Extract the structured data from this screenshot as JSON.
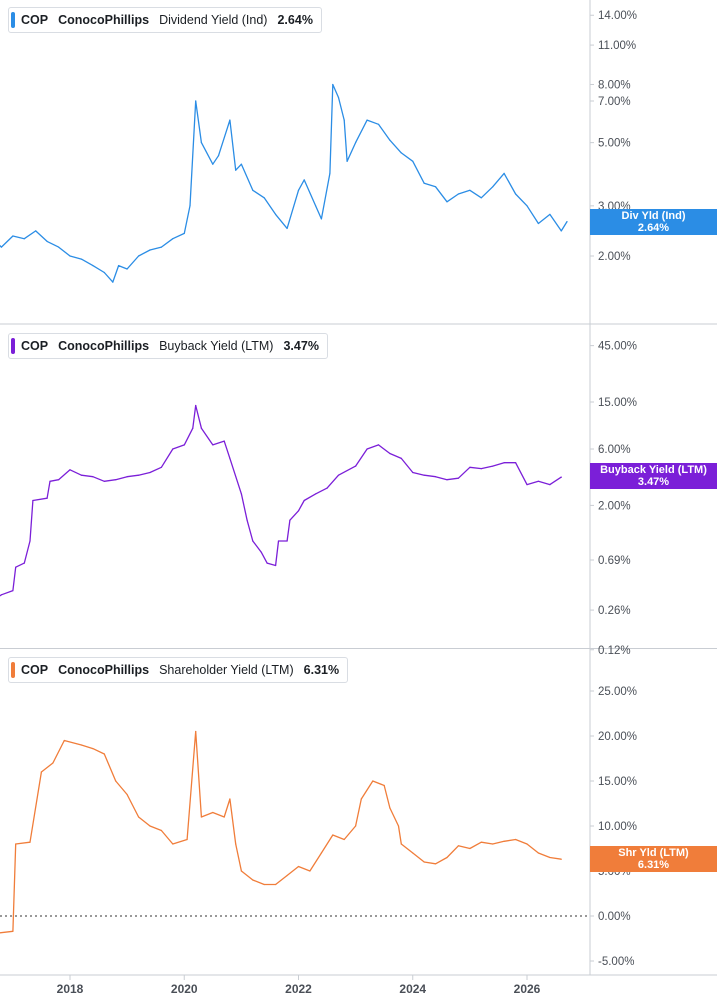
{
  "colors": {
    "dividend": "#2b8de5",
    "buyback": "#7b1fd8",
    "shareholder": "#f07d3a",
    "axis_text": "#4a4f57",
    "divider": "#c9cdd3"
  },
  "x_axis": {
    "ticks": [
      "2018",
      "2020",
      "2022",
      "2024",
      "2026"
    ]
  },
  "panels": [
    {
      "legend": {
        "ticker": "COP",
        "company": "ConocoPhillips",
        "metric": "Dividend Yield (Ind)",
        "value": "2.64%"
      },
      "tag": {
        "line1": "Div Yld (Ind)",
        "line2": "2.64%"
      },
      "ticks": [
        "14.00%",
        "11.00%",
        "8.00%",
        "7.00%",
        "5.00%",
        "3.00%",
        "2.00%"
      ]
    },
    {
      "legend": {
        "ticker": "COP",
        "company": "ConocoPhillips",
        "metric": "Buyback Yield (LTM)",
        "value": "3.47%"
      },
      "tag": {
        "line1": "Buyback Yield (LTM)",
        "line2": "3.47%"
      },
      "ticks": [
        "45.00%",
        "15.00%",
        "6.00%",
        "2.00%",
        "0.69%",
        "0.26%",
        "0.12%"
      ]
    },
    {
      "legend": {
        "ticker": "COP",
        "company": "ConocoPhillips",
        "metric": "Shareholder Yield (LTM)",
        "value": "6.31%"
      },
      "tag": {
        "line1": "Shr Yld (LTM)",
        "line2": "6.31%"
      },
      "ticks": [
        "25.00%",
        "20.00%",
        "15.00%",
        "10.00%",
        "5.00%",
        "0.00%",
        "-5.00%"
      ]
    }
  ],
  "chart_data": [
    {
      "type": "line",
      "title": "COP ConocoPhillips Dividend Yield (Ind) 2.64%",
      "y_scale": "log",
      "ylim": [
        1.5,
        16
      ],
      "series": [
        {
          "name": "Dividend Yield (Ind)",
          "points": [
            [
              2016.4,
              2.5
            ],
            [
              2016.6,
              2.35
            ],
            [
              2016.8,
              2.15
            ],
            [
              2017.0,
              2.35
            ],
            [
              2017.2,
              2.3
            ],
            [
              2017.4,
              2.45
            ],
            [
              2017.6,
              2.25
            ],
            [
              2017.8,
              2.15
            ],
            [
              2018.0,
              2.0
            ],
            [
              2018.2,
              1.95
            ],
            [
              2018.4,
              1.85
            ],
            [
              2018.6,
              1.75
            ],
            [
              2018.75,
              1.62
            ],
            [
              2018.85,
              1.85
            ],
            [
              2019.0,
              1.8
            ],
            [
              2019.2,
              2.0
            ],
            [
              2019.4,
              2.1
            ],
            [
              2019.6,
              2.15
            ],
            [
              2019.8,
              2.3
            ],
            [
              2020.0,
              2.4
            ],
            [
              2020.1,
              3.0
            ],
            [
              2020.2,
              7.0
            ],
            [
              2020.3,
              5.0
            ],
            [
              2020.5,
              4.2
            ],
            [
              2020.6,
              4.5
            ],
            [
              2020.8,
              6.0
            ],
            [
              2020.9,
              4.0
            ],
            [
              2021.0,
              4.2
            ],
            [
              2021.2,
              3.4
            ],
            [
              2021.4,
              3.2
            ],
            [
              2021.6,
              2.8
            ],
            [
              2021.8,
              2.5
            ],
            [
              2022.0,
              3.4
            ],
            [
              2022.1,
              3.7
            ],
            [
              2022.3,
              3.0
            ],
            [
              2022.4,
              2.7
            ],
            [
              2022.55,
              3.9
            ],
            [
              2022.6,
              8.0
            ],
            [
              2022.7,
              7.2
            ],
            [
              2022.8,
              6.0
            ],
            [
              2022.85,
              4.3
            ],
            [
              2023.0,
              5.0
            ],
            [
              2023.2,
              6.0
            ],
            [
              2023.4,
              5.8
            ],
            [
              2023.6,
              5.1
            ],
            [
              2023.8,
              4.6
            ],
            [
              2024.0,
              4.3
            ],
            [
              2024.2,
              3.6
            ],
            [
              2024.4,
              3.5
            ],
            [
              2024.6,
              3.1
            ],
            [
              2024.8,
              3.3
            ],
            [
              2025.0,
              3.4
            ],
            [
              2025.2,
              3.2
            ],
            [
              2025.4,
              3.5
            ],
            [
              2025.6,
              3.9
            ],
            [
              2025.8,
              3.3
            ],
            [
              2026.0,
              3.0
            ],
            [
              2026.2,
              2.6
            ],
            [
              2026.4,
              2.8
            ],
            [
              2026.6,
              2.45
            ],
            [
              2026.7,
              2.64
            ]
          ]
        }
      ]
    },
    {
      "type": "line",
      "title": "COP ConocoPhillips Buyback Yield (LTM) 3.47%",
      "y_scale": "log",
      "ylim": [
        0.12,
        60
      ],
      "series": [
        {
          "name": "Buyback Yield (LTM)",
          "points": [
            [
              2016.55,
              0.16
            ],
            [
              2016.6,
              0.3
            ],
            [
              2016.8,
              0.35
            ],
            [
              2017.0,
              0.38
            ],
            [
              2017.05,
              0.6
            ],
            [
              2017.2,
              0.65
            ],
            [
              2017.3,
              1.0
            ],
            [
              2017.35,
              2.2
            ],
            [
              2017.6,
              2.3
            ],
            [
              2017.65,
              3.2
            ],
            [
              2017.8,
              3.3
            ],
            [
              2018.0,
              4.0
            ],
            [
              2018.2,
              3.6
            ],
            [
              2018.4,
              3.5
            ],
            [
              2018.6,
              3.2
            ],
            [
              2018.8,
              3.3
            ],
            [
              2019.0,
              3.5
            ],
            [
              2019.2,
              3.6
            ],
            [
              2019.4,
              3.8
            ],
            [
              2019.6,
              4.2
            ],
            [
              2019.8,
              6.0
            ],
            [
              2020.0,
              6.5
            ],
            [
              2020.15,
              9.0
            ],
            [
              2020.2,
              14.0
            ],
            [
              2020.3,
              9.0
            ],
            [
              2020.5,
              6.5
            ],
            [
              2020.7,
              7.0
            ],
            [
              2020.8,
              5.0
            ],
            [
              2021.0,
              2.5
            ],
            [
              2021.1,
              1.5
            ],
            [
              2021.2,
              1.0
            ],
            [
              2021.35,
              0.8
            ],
            [
              2021.45,
              0.65
            ],
            [
              2021.6,
              0.62
            ],
            [
              2021.65,
              1.0
            ],
            [
              2021.8,
              1.0
            ],
            [
              2021.85,
              1.5
            ],
            [
              2022.0,
              1.8
            ],
            [
              2022.1,
              2.2
            ],
            [
              2022.3,
              2.5
            ],
            [
              2022.5,
              2.8
            ],
            [
              2022.7,
              3.6
            ],
            [
              2023.0,
              4.3
            ],
            [
              2023.2,
              6.0
            ],
            [
              2023.4,
              6.5
            ],
            [
              2023.6,
              5.5
            ],
            [
              2023.8,
              5.0
            ],
            [
              2024.0,
              3.8
            ],
            [
              2024.2,
              3.6
            ],
            [
              2024.4,
              3.5
            ],
            [
              2024.6,
              3.3
            ],
            [
              2024.8,
              3.4
            ],
            [
              2025.0,
              4.2
            ],
            [
              2025.2,
              4.1
            ],
            [
              2025.4,
              4.3
            ],
            [
              2025.6,
              4.6
            ],
            [
              2025.8,
              4.6
            ],
            [
              2026.0,
              3.0
            ],
            [
              2026.2,
              3.2
            ],
            [
              2026.4,
              3.0
            ],
            [
              2026.6,
              3.47
            ]
          ]
        }
      ]
    },
    {
      "type": "line",
      "title": "COP ConocoPhillips Shareholder Yield (LTM) 6.31%",
      "y_scale": "linear",
      "ylim": [
        -6,
        28
      ],
      "series": [
        {
          "name": "Shareholder Yield (LTM)",
          "points": [
            [
              2016.0,
              -3.5
            ],
            [
              2016.3,
              -3.3
            ],
            [
              2016.6,
              -2.0
            ],
            [
              2017.0,
              -1.7
            ],
            [
              2017.05,
              8.0
            ],
            [
              2017.3,
              8.2
            ],
            [
              2017.5,
              16.0
            ],
            [
              2017.7,
              17.0
            ],
            [
              2017.9,
              19.5
            ],
            [
              2018.2,
              19.0
            ],
            [
              2018.4,
              18.6
            ],
            [
              2018.6,
              18.0
            ],
            [
              2018.8,
              15.0
            ],
            [
              2019.0,
              13.5
            ],
            [
              2019.2,
              11.0
            ],
            [
              2019.4,
              10.0
            ],
            [
              2019.6,
              9.5
            ],
            [
              2019.8,
              8.0
            ],
            [
              2020.05,
              8.5
            ],
            [
              2020.2,
              20.5
            ],
            [
              2020.3,
              11.0
            ],
            [
              2020.5,
              11.5
            ],
            [
              2020.7,
              11.0
            ],
            [
              2020.8,
              13.0
            ],
            [
              2020.9,
              8.0
            ],
            [
              2021.0,
              5.0
            ],
            [
              2021.2,
              4.0
            ],
            [
              2021.4,
              3.5
            ],
            [
              2021.6,
              3.5
            ],
            [
              2021.8,
              4.5
            ],
            [
              2022.0,
              5.5
            ],
            [
              2022.2,
              5.0
            ],
            [
              2022.4,
              7.0
            ],
            [
              2022.6,
              9.0
            ],
            [
              2022.8,
              8.5
            ],
            [
              2023.0,
              10.0
            ],
            [
              2023.1,
              13.0
            ],
            [
              2023.3,
              15.0
            ],
            [
              2023.5,
              14.5
            ],
            [
              2023.6,
              12.0
            ],
            [
              2023.75,
              10.0
            ],
            [
              2023.8,
              8.0
            ],
            [
              2024.0,
              7.0
            ],
            [
              2024.2,
              6.0
            ],
            [
              2024.4,
              5.8
            ],
            [
              2024.6,
              6.5
            ],
            [
              2024.8,
              7.8
            ],
            [
              2025.0,
              7.5
            ],
            [
              2025.2,
              8.2
            ],
            [
              2025.4,
              8.0
            ],
            [
              2025.6,
              8.3
            ],
            [
              2025.8,
              8.5
            ],
            [
              2026.0,
              8.0
            ],
            [
              2026.2,
              7.0
            ],
            [
              2026.4,
              6.5
            ],
            [
              2026.6,
              6.31
            ]
          ]
        }
      ]
    }
  ]
}
